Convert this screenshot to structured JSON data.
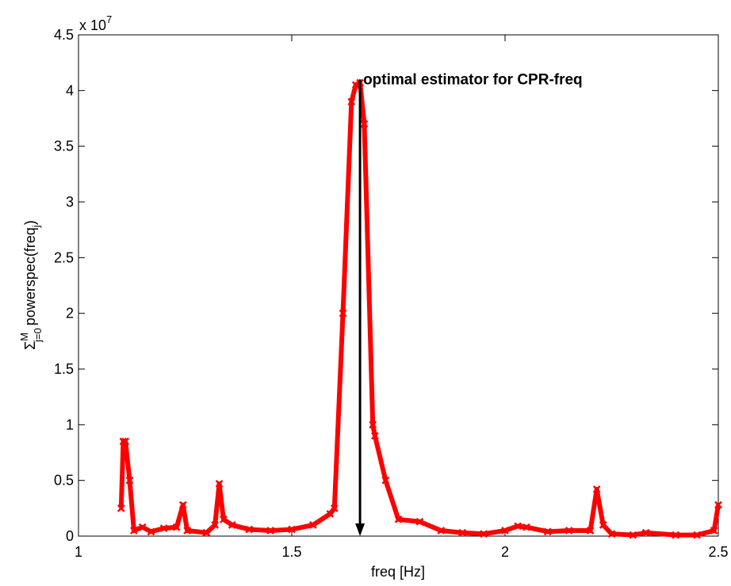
{
  "chart_data": {
    "type": "line",
    "xlabel": "freq [Hz]",
    "ylabel": {
      "sigma": "Σ",
      "sub": "j=0",
      "sup": "M",
      "text": "powerspec(freq",
      "text_sub": "j",
      "close": ")"
    },
    "y_multiplier": "x 10",
    "y_multiplier_exponent": "7",
    "x": [
      1.1,
      1.105,
      1.11,
      1.12,
      1.13,
      1.15,
      1.17,
      1.2,
      1.23,
      1.245,
      1.255,
      1.3,
      1.32,
      1.33,
      1.34,
      1.36,
      1.4,
      1.45,
      1.5,
      1.55,
      1.59,
      1.6,
      1.62,
      1.64,
      1.65,
      1.66,
      1.67,
      1.69,
      1.695,
      1.72,
      1.75,
      1.8,
      1.85,
      1.9,
      1.95,
      2.0,
      2.03,
      2.05,
      2.1,
      2.15,
      2.2,
      2.215,
      2.23,
      2.25,
      2.3,
      2.33,
      2.4,
      2.45,
      2.49,
      2.5
    ],
    "series": [
      {
        "name": "powerspec",
        "color": "#ff0000",
        "values": [
          0.25,
          0.85,
          0.85,
          0.5,
          0.05,
          0.08,
          0.04,
          0.07,
          0.08,
          0.28,
          0.05,
          0.03,
          0.1,
          0.47,
          0.15,
          0.1,
          0.06,
          0.05,
          0.06,
          0.1,
          0.2,
          0.25,
          2.0,
          3.9,
          4.05,
          4.07,
          3.7,
          1.0,
          0.9,
          0.5,
          0.15,
          0.13,
          0.05,
          0.03,
          0.02,
          0.05,
          0.09,
          0.08,
          0.04,
          0.05,
          0.05,
          0.42,
          0.1,
          0.02,
          0.01,
          0.03,
          0.01,
          0.01,
          0.05,
          0.28
        ]
      }
    ],
    "xlim": [
      1,
      2.5
    ],
    "xticks": [
      1,
      1.5,
      2,
      2.5
    ],
    "ylim": [
      0,
      4.5
    ],
    "yticks": [
      0,
      0.5,
      1,
      1.5,
      2,
      2.5,
      3,
      3.5,
      4,
      4.5
    ],
    "annotation": {
      "text": "optimal estimator for CPR-freq",
      "x": 1.66,
      "y": 4.1
    }
  }
}
